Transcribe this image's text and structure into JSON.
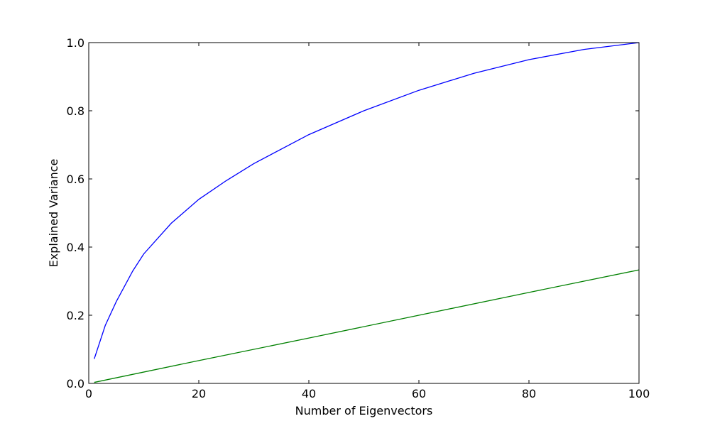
{
  "chart_data": {
    "type": "line",
    "title": "",
    "xlabel": "Number of Eigenvectors",
    "ylabel": "Explained Variance",
    "xlim": [
      0,
      100
    ],
    "ylim": [
      0.0,
      1.0
    ],
    "xticks": [
      0,
      20,
      40,
      60,
      80,
      100
    ],
    "xtick_labels": [
      "0",
      "20",
      "40",
      "60",
      "80",
      "100"
    ],
    "yticks": [
      0.0,
      0.2,
      0.4,
      0.6,
      0.8,
      1.0
    ],
    "ytick_labels": [
      "0.0",
      "0.2",
      "0.4",
      "0.6",
      "0.8",
      "1.0"
    ],
    "grid": false,
    "series": [
      {
        "color": "#0000ff",
        "x": [
          1,
          3,
          5,
          8,
          10,
          15,
          20,
          25,
          30,
          40,
          50,
          60,
          70,
          80,
          90,
          100
        ],
        "y": [
          0.072,
          0.17,
          0.24,
          0.33,
          0.38,
          0.47,
          0.54,
          0.595,
          0.645,
          0.73,
          0.8,
          0.86,
          0.91,
          0.95,
          0.98,
          1.0
        ]
      },
      {
        "color": "#008000",
        "x": [
          1,
          20,
          40,
          60,
          80,
          100
        ],
        "y": [
          0.003,
          0.067,
          0.133,
          0.2,
          0.267,
          0.333
        ]
      }
    ]
  }
}
